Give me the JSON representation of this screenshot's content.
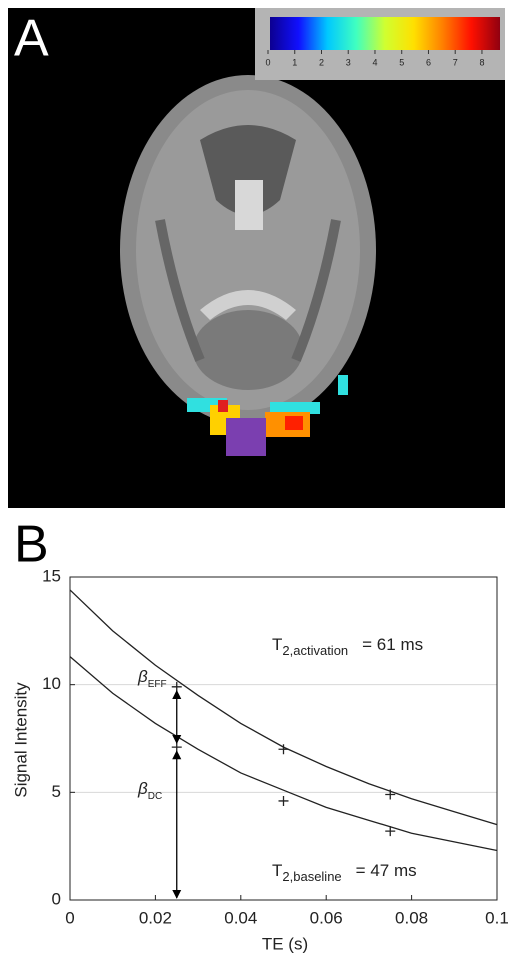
{
  "chart_data": [
    {
      "type": "colorbar",
      "panel_label": "A",
      "colors": [
        "#0c0090",
        "#1010ff",
        "#00c8ff",
        "#40ffc0",
        "#d0ff30",
        "#ffe000",
        "#ff8000",
        "#ff1000",
        "#900010"
      ],
      "lim": [
        0,
        8.6
      ],
      "ticks": [
        0,
        1,
        2,
        3,
        4,
        5,
        6,
        7,
        8
      ]
    },
    {
      "type": "line",
      "panel_label": "B",
      "x_label": "TE (s)",
      "y_label": "Signal Intensity",
      "xlim": [
        0,
        0.1
      ],
      "ylim": [
        0,
        15
      ],
      "xticks": [
        0,
        0.02,
        0.04,
        0.06,
        0.08,
        0.1
      ],
      "yticks": [
        0,
        5,
        10,
        15
      ],
      "grid": true,
      "x": [
        0,
        0.01,
        0.02,
        0.03,
        0.04,
        0.05,
        0.06,
        0.07,
        0.08,
        0.09,
        0.1
      ],
      "series": [
        {
          "color": "#222222",
          "values": [
            14.4,
            12.5,
            10.9,
            9.5,
            8.2,
            7.1,
            6.2,
            5.4,
            4.7,
            4.1,
            3.5
          ]
        },
        {
          "color": "#222222",
          "values": [
            11.3,
            9.6,
            8.2,
            7.0,
            5.9,
            5.1,
            4.3,
            3.7,
            3.1,
            2.7,
            2.3
          ]
        },
        {
          "color": "#222222",
          "marker": "+",
          "x": [
            0.025,
            0.05,
            0.075
          ],
          "values": [
            9.9,
            7.0,
            4.9
          ]
        },
        {
          "color": "#222222",
          "marker": "+",
          "x": [
            0.025,
            0.05,
            0.075
          ],
          "values": [
            7.1,
            4.6,
            3.2
          ]
        }
      ],
      "annotations": [
        {
          "text": "T",
          "subscript": "2,activation",
          "suffix": "= 61 ms"
        },
        {
          "text": "T",
          "subscript": "2,baseline",
          "suffix": "= 47 ms"
        },
        {
          "text": "β",
          "subscript": "EFF"
        },
        {
          "text": "β",
          "subscript": "DC"
        }
      ]
    }
  ]
}
